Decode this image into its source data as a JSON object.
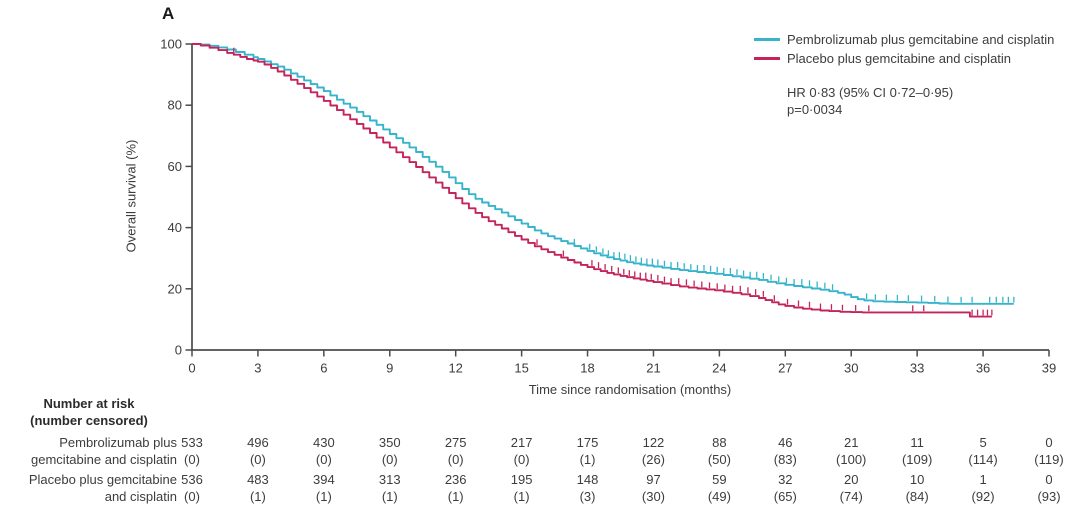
{
  "figure": {
    "panel_label": "A"
  },
  "colors": {
    "pembro": "#35b4cc",
    "placebo": "#c42459",
    "axis": "#4b4b4b",
    "text": "#3d3d3d"
  },
  "chart_data": {
    "type": "line",
    "subtype": "kaplan-meier-step",
    "title": "",
    "xlabel": "Time since randomisation (months)",
    "ylabel": "Overall survival (%)",
    "xlim": [
      0,
      39
    ],
    "ylim": [
      0,
      100
    ],
    "xticks": [
      0,
      3,
      6,
      9,
      12,
      15,
      18,
      21,
      24,
      27,
      30,
      33,
      36,
      39
    ],
    "yticks": [
      0,
      20,
      40,
      60,
      80,
      100
    ],
    "grid": false,
    "legend_position": "top-right",
    "annotation": {
      "line1": "HR 0·83 (95% CI 0·72–0·95)",
      "line2": "p=0·0034"
    },
    "series": [
      {
        "name": "Pembrolizumab plus gemcitabine and cisplatin",
        "color_key": "pembro",
        "points": [
          [
            0,
            100
          ],
          [
            0.4,
            99.8
          ],
          [
            0.8,
            99.4
          ],
          [
            1.2,
            98.9
          ],
          [
            1.6,
            98.2
          ],
          [
            2.0,
            97.4
          ],
          [
            2.4,
            96.5
          ],
          [
            2.8,
            95.7
          ],
          [
            3.0,
            95.1
          ],
          [
            3.3,
            94.3
          ],
          [
            3.6,
            93.4
          ],
          [
            3.9,
            92.6
          ],
          [
            4.2,
            91.6
          ],
          [
            4.5,
            90.4
          ],
          [
            4.8,
            89.3
          ],
          [
            5.1,
            88.1
          ],
          [
            5.4,
            86.9
          ],
          [
            5.7,
            85.8
          ],
          [
            6.0,
            84.6
          ],
          [
            6.3,
            83.2
          ],
          [
            6.6,
            81.8
          ],
          [
            6.9,
            80.5
          ],
          [
            7.2,
            79.2
          ],
          [
            7.5,
            77.8
          ],
          [
            7.8,
            76.4
          ],
          [
            8.1,
            75.0
          ],
          [
            8.4,
            73.6
          ],
          [
            8.7,
            72.1
          ],
          [
            9.0,
            70.6
          ],
          [
            9.3,
            69.2
          ],
          [
            9.6,
            67.7
          ],
          [
            9.9,
            66.2
          ],
          [
            10.2,
            64.7
          ],
          [
            10.5,
            63.1
          ],
          [
            10.8,
            61.5
          ],
          [
            11.1,
            59.9
          ],
          [
            11.4,
            58.2
          ],
          [
            11.7,
            56.4
          ],
          [
            12.0,
            54.5
          ],
          [
            12.3,
            52.6
          ],
          [
            12.6,
            50.9
          ],
          [
            12.9,
            49.4
          ],
          [
            13.2,
            48.2
          ],
          [
            13.5,
            47.1
          ],
          [
            13.8,
            46.0
          ],
          [
            14.1,
            44.9
          ],
          [
            14.4,
            43.7
          ],
          [
            14.7,
            42.5
          ],
          [
            15.0,
            41.3
          ],
          [
            15.3,
            40.2
          ],
          [
            15.6,
            39.1
          ],
          [
            15.9,
            38.1
          ],
          [
            16.2,
            37.2
          ],
          [
            16.5,
            36.4
          ],
          [
            16.8,
            35.6
          ],
          [
            17.1,
            34.8
          ],
          [
            17.4,
            34.0
          ],
          [
            17.7,
            33.2
          ],
          [
            18.0,
            32.4
          ],
          [
            18.3,
            31.6
          ],
          [
            18.6,
            30.9
          ],
          [
            18.9,
            30.3
          ],
          [
            19.2,
            29.7
          ],
          [
            19.5,
            29.2
          ],
          [
            19.8,
            28.7
          ],
          [
            20.1,
            28.3
          ],
          [
            20.4,
            27.9
          ],
          [
            20.7,
            27.6
          ],
          [
            21.0,
            27.3
          ],
          [
            21.4,
            26.9
          ],
          [
            21.8,
            26.5
          ],
          [
            22.2,
            26.1
          ],
          [
            22.6,
            25.8
          ],
          [
            23.0,
            25.5
          ],
          [
            23.4,
            25.2
          ],
          [
            23.8,
            24.9
          ],
          [
            24.2,
            24.5
          ],
          [
            24.6,
            24.1
          ],
          [
            25.0,
            23.7
          ],
          [
            25.4,
            23.3
          ],
          [
            25.8,
            22.9
          ],
          [
            26.2,
            22.3
          ],
          [
            26.6,
            21.8
          ],
          [
            27.0,
            21.3
          ],
          [
            27.4,
            20.9
          ],
          [
            27.8,
            20.5
          ],
          [
            28.2,
            20.1
          ],
          [
            28.6,
            19.7
          ],
          [
            29.0,
            19.2
          ],
          [
            29.4,
            18.7
          ],
          [
            29.7,
            18.1
          ],
          [
            30.0,
            17.3
          ],
          [
            30.3,
            16.6
          ],
          [
            30.6,
            16.2
          ],
          [
            31.0,
            15.9
          ],
          [
            31.5,
            15.8
          ],
          [
            32.0,
            15.7
          ],
          [
            32.5,
            15.6
          ],
          [
            33.0,
            15.5
          ],
          [
            33.5,
            15.4
          ],
          [
            34.0,
            15.2
          ],
          [
            34.5,
            15.1
          ],
          [
            37.4,
            15.1
          ]
        ],
        "censor_marks": [
          17.4,
          18.1,
          18.4,
          18.7,
          18.95,
          19.2,
          19.45,
          19.7,
          19.95,
          20.2,
          20.45,
          20.7,
          20.95,
          21.2,
          21.5,
          21.8,
          22.1,
          22.4,
          22.7,
          23.0,
          23.3,
          23.6,
          23.9,
          24.2,
          24.5,
          24.8,
          25.1,
          25.4,
          25.7,
          26.0,
          26.35,
          26.7,
          27.05,
          27.4,
          27.75,
          28.1,
          28.45,
          28.8,
          29.15,
          30.7,
          31.1,
          31.6,
          32.1,
          32.6,
          33.2,
          33.8,
          34.4,
          35.0,
          35.5,
          36.3,
          36.6,
          36.9,
          37.15,
          37.4
        ]
      },
      {
        "name": "Placebo plus gemcitabine and cisplatin",
        "color_key": "placebo",
        "points": [
          [
            0,
            100
          ],
          [
            0.4,
            99.5
          ],
          [
            0.8,
            98.8
          ],
          [
            1.2,
            98.0
          ],
          [
            1.6,
            97.1
          ],
          [
            1.9,
            96.5
          ],
          [
            2.2,
            95.8
          ],
          [
            2.5,
            95.1
          ],
          [
            2.8,
            94.6
          ],
          [
            3.0,
            94.2
          ],
          [
            3.3,
            93.3
          ],
          [
            3.6,
            92.2
          ],
          [
            3.9,
            91.0
          ],
          [
            4.2,
            89.7
          ],
          [
            4.5,
            88.3
          ],
          [
            4.8,
            87.0
          ],
          [
            5.1,
            85.6
          ],
          [
            5.4,
            84.2
          ],
          [
            5.7,
            82.8
          ],
          [
            6.0,
            81.4
          ],
          [
            6.3,
            79.9
          ],
          [
            6.6,
            78.4
          ],
          [
            6.9,
            76.9
          ],
          [
            7.2,
            75.4
          ],
          [
            7.5,
            73.9
          ],
          [
            7.8,
            72.4
          ],
          [
            8.1,
            70.9
          ],
          [
            8.4,
            69.4
          ],
          [
            8.7,
            67.8
          ],
          [
            9.0,
            66.2
          ],
          [
            9.3,
            64.6
          ],
          [
            9.6,
            63.0
          ],
          [
            9.9,
            61.4
          ],
          [
            10.2,
            59.8
          ],
          [
            10.5,
            58.1
          ],
          [
            10.8,
            56.4
          ],
          [
            11.1,
            54.7
          ],
          [
            11.4,
            53.0
          ],
          [
            11.7,
            51.3
          ],
          [
            12.0,
            49.6
          ],
          [
            12.3,
            47.9
          ],
          [
            12.6,
            46.3
          ],
          [
            12.9,
            44.8
          ],
          [
            13.2,
            43.4
          ],
          [
            13.5,
            42.1
          ],
          [
            13.8,
            40.9
          ],
          [
            14.1,
            39.7
          ],
          [
            14.4,
            38.5
          ],
          [
            14.7,
            37.3
          ],
          [
            15.0,
            36.1
          ],
          [
            15.3,
            35.0
          ],
          [
            15.6,
            33.9
          ],
          [
            15.9,
            32.9
          ],
          [
            16.2,
            32.0
          ],
          [
            16.5,
            31.1
          ],
          [
            16.8,
            30.2
          ],
          [
            17.1,
            29.4
          ],
          [
            17.4,
            28.6
          ],
          [
            17.7,
            27.8
          ],
          [
            18.0,
            27.1
          ],
          [
            18.3,
            26.4
          ],
          [
            18.6,
            25.8
          ],
          [
            18.9,
            25.2
          ],
          [
            19.2,
            24.7
          ],
          [
            19.5,
            24.2
          ],
          [
            19.8,
            23.8
          ],
          [
            20.1,
            23.4
          ],
          [
            20.4,
            23.0
          ],
          [
            20.7,
            22.6
          ],
          [
            21.0,
            22.2
          ],
          [
            21.4,
            21.7
          ],
          [
            21.8,
            21.2
          ],
          [
            22.2,
            20.8
          ],
          [
            22.6,
            20.4
          ],
          [
            23.0,
            20.1
          ],
          [
            23.4,
            19.8
          ],
          [
            23.8,
            19.5
          ],
          [
            24.2,
            19.1
          ],
          [
            24.6,
            18.7
          ],
          [
            25.0,
            18.2
          ],
          [
            25.4,
            17.6
          ],
          [
            25.8,
            17.0
          ],
          [
            26.1,
            16.3
          ],
          [
            26.4,
            15.6
          ],
          [
            26.7,
            14.9
          ],
          [
            27.0,
            14.4
          ],
          [
            27.4,
            13.9
          ],
          [
            27.8,
            13.5
          ],
          [
            28.2,
            13.2
          ],
          [
            28.6,
            12.9
          ],
          [
            29.0,
            12.7
          ],
          [
            29.5,
            12.5
          ],
          [
            30.0,
            12.4
          ],
          [
            30.5,
            12.3
          ],
          [
            35.2,
            12.3
          ],
          [
            35.4,
            10.9
          ],
          [
            36.4,
            10.9
          ]
        ],
        "censor_marks": [
          1.9,
          15.7,
          16.9,
          18.2,
          18.5,
          18.8,
          19.1,
          19.4,
          19.65,
          19.9,
          20.15,
          20.4,
          20.65,
          20.9,
          21.2,
          21.5,
          21.8,
          22.15,
          22.5,
          22.85,
          23.2,
          23.55,
          23.9,
          24.25,
          24.6,
          24.95,
          25.3,
          25.65,
          26.0,
          26.5,
          27.1,
          27.6,
          28.1,
          28.6,
          29.1,
          29.6,
          30.2,
          30.8,
          32.8,
          33.3,
          35.5,
          35.75,
          36.0,
          36.2,
          36.4
        ]
      }
    ]
  },
  "risk_table": {
    "header_line1": "Number at risk",
    "header_line2": "(number censored)",
    "time_points": [
      0,
      3,
      6,
      9,
      12,
      15,
      18,
      21,
      24,
      27,
      30,
      33,
      36,
      39
    ],
    "rows": [
      {
        "label_line1": "Pembrolizumab plus",
        "label_line2": "gemcitabine and cisplatin",
        "color_key": "pembro",
        "at_risk": [
          533,
          496,
          430,
          350,
          275,
          217,
          175,
          122,
          88,
          46,
          21,
          11,
          5,
          0
        ],
        "censored": [
          0,
          0,
          0,
          0,
          0,
          0,
          1,
          26,
          50,
          83,
          100,
          109,
          114,
          119
        ]
      },
      {
        "label_line1": "Placebo plus gemcitabine",
        "label_line2": "and cisplatin",
        "color_key": "placebo",
        "at_risk": [
          536,
          483,
          394,
          313,
          236,
          195,
          148,
          97,
          59,
          32,
          20,
          10,
          1,
          0
        ],
        "censored": [
          0,
          1,
          1,
          1,
          1,
          1,
          3,
          30,
          49,
          65,
          74,
          84,
          92,
          93
        ]
      }
    ]
  }
}
